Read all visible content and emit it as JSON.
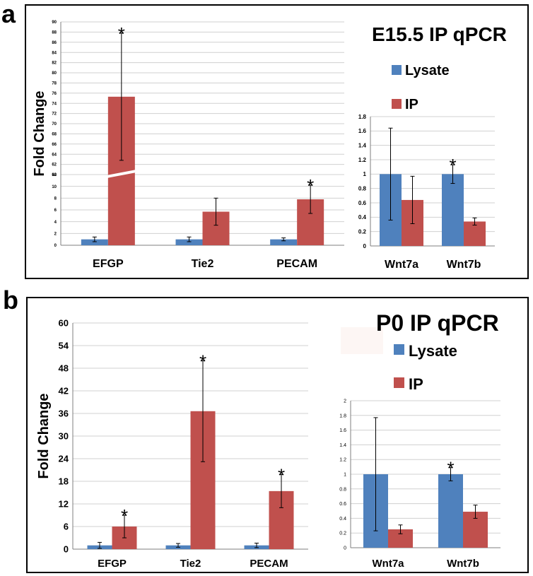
{
  "colors": {
    "lysate": "#4f81bd",
    "ip": "#c0504d",
    "grid": "#d0d0d0",
    "axis": "#7f7f7f",
    "border": "#000000"
  },
  "panels": [
    {
      "letter": "a",
      "title": "E15.5 IP qPCR",
      "legend": [
        {
          "label": "Lysate",
          "series": "lysate"
        },
        {
          "label": "IP",
          "series": "ip"
        }
      ],
      "charts": [
        {
          "type": "bar",
          "broken_axis": true,
          "ylabel": "Fold Change",
          "categories": [
            "EFGP",
            "Tie2",
            "PECAM"
          ],
          "yticks": [
            0,
            2,
            4,
            6,
            8,
            10,
            12,
            60,
            62,
            64,
            66,
            68,
            70,
            72,
            74,
            76,
            78,
            80,
            82,
            84,
            86,
            88,
            90
          ],
          "ylim": [
            0,
            90
          ],
          "series": [
            {
              "name": "Lysate",
              "key": "lysate",
              "values": [
                1,
                1,
                1
              ],
              "err": [
                0.4,
                0.4,
                0.25
              ]
            },
            {
              "name": "IP",
              "key": "ip",
              "values": [
                75.3,
                5.7,
                7.8
              ],
              "err": [
                12.5,
                2.3,
                2.4
              ]
            }
          ],
          "significant": [
            {
              "category": 0,
              "series": 1,
              "mark": "*"
            },
            {
              "category": 2,
              "series": 1,
              "mark": "*"
            }
          ]
        },
        {
          "type": "bar",
          "ylabel": "",
          "categories": [
            "Wnt7a",
            "Wnt7b"
          ],
          "yticks": [
            0,
            0.2,
            0.4,
            0.6,
            0.8,
            1,
            1.2,
            1.4,
            1.6,
            1.8
          ],
          "ytick_labels": [
            "0",
            "0.2",
            "0.4",
            "0.6",
            "0.8",
            "1",
            "1.2",
            "1.4",
            "1.6",
            "1.8"
          ],
          "ylim": [
            0,
            1.8
          ],
          "series": [
            {
              "name": "Lysate",
              "key": "lysate",
              "values": [
                1,
                1
              ],
              "err": [
                0.64,
                0.13
              ]
            },
            {
              "name": "IP",
              "key": "ip",
              "values": [
                0.64,
                0.34
              ],
              "err": [
                0.33,
                0.05
              ]
            }
          ],
          "significant": [
            {
              "category": 1,
              "series": 0,
              "mark": "*"
            }
          ]
        }
      ]
    },
    {
      "letter": "b",
      "title": "P0 IP qPCR",
      "legend": [
        {
          "label": "Lysate",
          "series": "lysate"
        },
        {
          "label": "IP",
          "series": "ip"
        }
      ],
      "charts": [
        {
          "type": "bar",
          "ylabel": "Fold Change",
          "categories": [
            "EFGP",
            "Tie2",
            "PECAM"
          ],
          "yticks": [
            0,
            6,
            12,
            18,
            24,
            30,
            36,
            42,
            48,
            54,
            60
          ],
          "ylim": [
            0,
            60
          ],
          "series": [
            {
              "name": "Lysate",
              "key": "lysate",
              "values": [
                1,
                1,
                1
              ],
              "err": [
                0.8,
                0.5,
                0.6
              ]
            },
            {
              "name": "IP",
              "key": "ip",
              "values": [
                6,
                36.6,
                15.4
              ],
              "err": [
                3,
                13.4,
                4.4
              ]
            }
          ],
          "significant": [
            {
              "category": 0,
              "series": 1,
              "mark": "*"
            },
            {
              "category": 1,
              "series": 1,
              "mark": "*"
            },
            {
              "category": 2,
              "series": 1,
              "mark": "*"
            }
          ]
        },
        {
          "type": "bar",
          "ylabel": "",
          "categories": [
            "Wnt7a",
            "Wnt7b"
          ],
          "yticks": [
            0,
            0.2,
            0.4,
            0.6,
            0.8,
            1,
            1.2,
            1.4,
            1.6,
            1.8,
            2
          ],
          "ytick_labels": [
            "0",
            "0.2",
            "0.4",
            "0.6",
            "0.8",
            "1",
            "1.2",
            "1.4",
            "1.6",
            "1.8",
            "2"
          ],
          "ylim": [
            0,
            2
          ],
          "series": [
            {
              "name": "Lysate",
              "key": "lysate",
              "values": [
                1,
                1
              ],
              "err": [
                0.77,
                0.09
              ]
            },
            {
              "name": "IP",
              "key": "ip",
              "values": [
                0.25,
                0.49
              ],
              "err": [
                0.06,
                0.09
              ]
            }
          ],
          "significant": [
            {
              "category": 1,
              "series": 0,
              "mark": "*"
            }
          ]
        }
      ]
    }
  ]
}
